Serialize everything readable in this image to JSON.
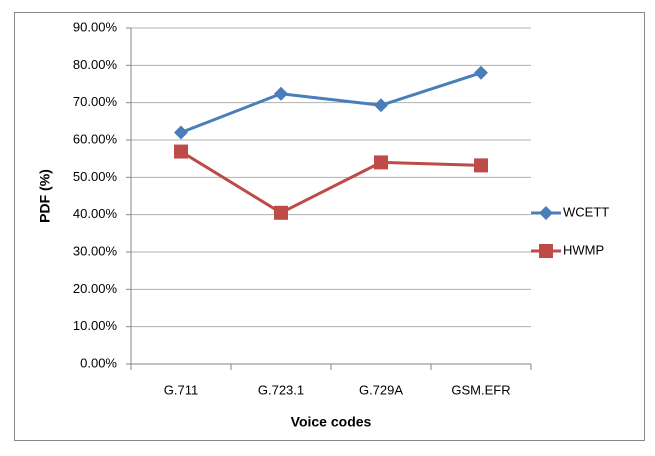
{
  "chart_data": {
    "type": "line",
    "x_label": "Voice codes",
    "y_label": "PDF (%)",
    "categories": [
      "G.711",
      "G.723.1",
      "G.729A",
      "GSM.EFR"
    ],
    "series": [
      {
        "name": "WCETT",
        "color": "#4a7ebb",
        "marker": "diamond",
        "values": [
          62,
          72.4,
          69.3,
          78
        ]
      },
      {
        "name": "HWMP",
        "color": "#be4b48",
        "marker": "square",
        "values": [
          56.9,
          40.5,
          54,
          53.2
        ]
      }
    ],
    "ylim": [
      0,
      90
    ],
    "yticks": [
      {
        "value": 0,
        "label": "0.00%"
      },
      {
        "value": 10,
        "label": "10.00%"
      },
      {
        "value": 20,
        "label": "20.00%"
      },
      {
        "value": 30,
        "label": "30.00%"
      },
      {
        "value": 40,
        "label": "40.00%"
      },
      {
        "value": 50,
        "label": "50.00%"
      },
      {
        "value": 60,
        "label": "60.00%"
      },
      {
        "value": 70,
        "label": "70.00%"
      },
      {
        "value": 80,
        "label": "80.00%"
      },
      {
        "value": 90,
        "label": "90.00%"
      }
    ],
    "grid": true,
    "legend": "right"
  }
}
